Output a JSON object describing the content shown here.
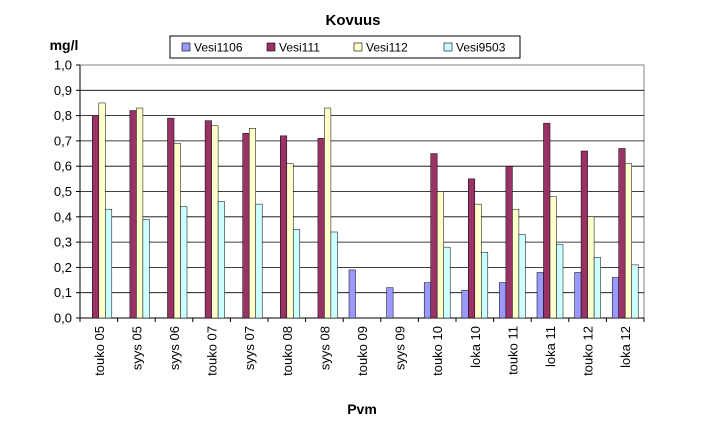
{
  "chart_data": {
    "type": "bar",
    "title": "Kovuus",
    "ylabel": "mg/l",
    "xlabel": "Pvm",
    "ylim": [
      0,
      1.0
    ],
    "ytick_step": 0.1,
    "yticks": [
      "0,0",
      "0,1",
      "0,2",
      "0,3",
      "0,4",
      "0,5",
      "0,6",
      "0,7",
      "0,8",
      "0,9",
      "1,0"
    ],
    "grid": true,
    "legend_position": "top",
    "categories": [
      "touko 05",
      "syys 05",
      "syys 06",
      "touko 07",
      "syys 07",
      "touko 08",
      "syys 08",
      "touko 09",
      "syys 09",
      "touko 10",
      "loka 10",
      "touko 11",
      "loka 11",
      "touko 12",
      "loka 12"
    ],
    "series": [
      {
        "name": "Vesi1106",
        "color": "#9999ff",
        "values": [
          null,
          null,
          null,
          null,
          null,
          null,
          null,
          0.19,
          0.12,
          0.14,
          0.11,
          0.14,
          0.18,
          0.18,
          0.16
        ]
      },
      {
        "name": "Vesi111",
        "color": "#993366",
        "values": [
          0.8,
          0.82,
          0.79,
          0.78,
          0.73,
          0.72,
          0.71,
          null,
          null,
          0.65,
          0.55,
          0.6,
          0.77,
          0.66,
          0.67
        ]
      },
      {
        "name": "Vesi112",
        "color": "#ffffcc",
        "values": [
          0.85,
          0.83,
          0.69,
          0.76,
          0.75,
          0.61,
          0.83,
          null,
          null,
          0.5,
          0.45,
          0.43,
          0.48,
          0.4,
          0.61
        ]
      },
      {
        "name": "Vesi9503",
        "color": "#ccffff",
        "values": [
          0.43,
          0.39,
          0.44,
          0.46,
          0.45,
          0.35,
          0.34,
          null,
          null,
          0.28,
          0.26,
          0.33,
          0.29,
          0.24,
          0.21
        ]
      }
    ]
  }
}
